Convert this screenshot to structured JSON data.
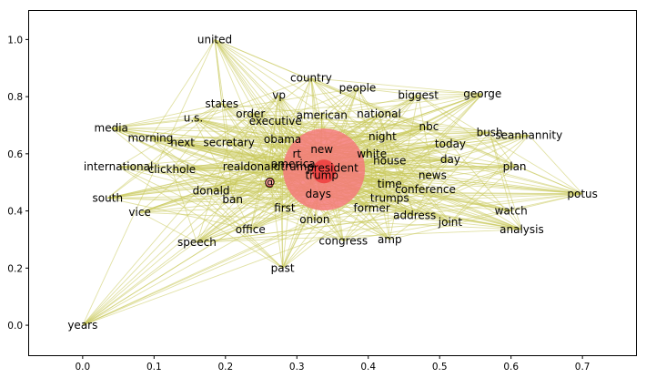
{
  "chart_data": {
    "type": "scatter",
    "subtype": "word-network",
    "title": "",
    "xlabel": "",
    "ylabel": "",
    "xlim": [
      -0.075,
      0.775
    ],
    "ylim": [
      -0.105,
      1.1
    ],
    "xticks": [
      0.0,
      0.1,
      0.2,
      0.3,
      0.4,
      0.5,
      0.6,
      0.7
    ],
    "xtick_labels": [
      "0.0",
      "0.1",
      "0.2",
      "0.3",
      "0.4",
      "0.5",
      "0.6",
      "0.7"
    ],
    "yticks": [
      0.0,
      0.2,
      0.4,
      0.6,
      0.8,
      1.0
    ],
    "ytick_labels": [
      "0.0",
      "0.2",
      "0.4",
      "0.6",
      "0.8",
      "1.0"
    ],
    "grid": false,
    "colors": {
      "edge": "#c8c85a",
      "big_node": "#f47a7a",
      "small_node": "#ee4040"
    },
    "nodes": [
      {
        "label": "united",
        "x": 0.185,
        "y": 1.0
      },
      {
        "label": "country",
        "x": 0.32,
        "y": 0.865
      },
      {
        "label": "people",
        "x": 0.385,
        "y": 0.83
      },
      {
        "label": "biggest",
        "x": 0.47,
        "y": 0.805
      },
      {
        "label": "george",
        "x": 0.56,
        "y": 0.81
      },
      {
        "label": "vp",
        "x": 0.275,
        "y": 0.805
      },
      {
        "label": "states",
        "x": 0.195,
        "y": 0.775
      },
      {
        "label": "order",
        "x": 0.235,
        "y": 0.74
      },
      {
        "label": "u.s.",
        "x": 0.155,
        "y": 0.725
      },
      {
        "label": "executive",
        "x": 0.27,
        "y": 0.715
      },
      {
        "label": "american",
        "x": 0.335,
        "y": 0.735
      },
      {
        "label": "national",
        "x": 0.415,
        "y": 0.74
      },
      {
        "label": "nbc",
        "x": 0.485,
        "y": 0.695
      },
      {
        "label": "media",
        "x": 0.04,
        "y": 0.69
      },
      {
        "label": "morning",
        "x": 0.095,
        "y": 0.655
      },
      {
        "label": "next",
        "x": 0.14,
        "y": 0.64
      },
      {
        "label": "secretary",
        "x": 0.205,
        "y": 0.64
      },
      {
        "label": "obama",
        "x": 0.28,
        "y": 0.65
      },
      {
        "label": "bush",
        "x": 0.57,
        "y": 0.675
      },
      {
        "label": "seanhannity",
        "x": 0.625,
        "y": 0.665
      },
      {
        "label": "night",
        "x": 0.42,
        "y": 0.66
      },
      {
        "label": "today",
        "x": 0.515,
        "y": 0.635
      },
      {
        "label": "new",
        "x": 0.335,
        "y": 0.615
      },
      {
        "label": "white",
        "x": 0.405,
        "y": 0.6
      },
      {
        "label": "rt",
        "x": 0.3,
        "y": 0.6
      },
      {
        "label": "house",
        "x": 0.43,
        "y": 0.575
      },
      {
        "label": "day",
        "x": 0.515,
        "y": 0.58
      },
      {
        "label": "america",
        "x": 0.295,
        "y": 0.565
      },
      {
        "label": "realdonaldtrump",
        "x": 0.26,
        "y": 0.555
      },
      {
        "label": "president",
        "x": 0.35,
        "y": 0.55
      },
      {
        "label": "international",
        "x": 0.05,
        "y": 0.555
      },
      {
        "label": "clickhole",
        "x": 0.125,
        "y": 0.545
      },
      {
        "label": "plan",
        "x": 0.605,
        "y": 0.555
      },
      {
        "label": "trump",
        "x": 0.335,
        "y": 0.525
      },
      {
        "label": "news",
        "x": 0.49,
        "y": 0.525
      },
      {
        "label": "time",
        "x": 0.43,
        "y": 0.495
      },
      {
        "label": "@",
        "x": 0.262,
        "y": 0.5
      },
      {
        "label": "conference",
        "x": 0.48,
        "y": 0.475
      },
      {
        "label": "donald",
        "x": 0.18,
        "y": 0.47
      },
      {
        "label": "days",
        "x": 0.33,
        "y": 0.46
      },
      {
        "label": "trumps",
        "x": 0.43,
        "y": 0.445
      },
      {
        "label": "potus",
        "x": 0.7,
        "y": 0.46
      },
      {
        "label": "south",
        "x": 0.035,
        "y": 0.445
      },
      {
        "label": "ban",
        "x": 0.21,
        "y": 0.44
      },
      {
        "label": "first",
        "x": 0.283,
        "y": 0.41
      },
      {
        "label": "former",
        "x": 0.405,
        "y": 0.41
      },
      {
        "label": "watch",
        "x": 0.6,
        "y": 0.4
      },
      {
        "label": "vice",
        "x": 0.08,
        "y": 0.395
      },
      {
        "label": "address",
        "x": 0.465,
        "y": 0.385
      },
      {
        "label": "onion",
        "x": 0.325,
        "y": 0.37
      },
      {
        "label": "joint",
        "x": 0.515,
        "y": 0.36
      },
      {
        "label": "analysis",
        "x": 0.615,
        "y": 0.335
      },
      {
        "label": "office",
        "x": 0.235,
        "y": 0.335
      },
      {
        "label": "congress",
        "x": 0.365,
        "y": 0.295
      },
      {
        "label": "amp",
        "x": 0.43,
        "y": 0.3
      },
      {
        "label": "speech",
        "x": 0.16,
        "y": 0.29
      },
      {
        "label": "past",
        "x": 0.28,
        "y": 0.2
      },
      {
        "label": "years",
        "x": 0.0,
        "y": 0.0
      }
    ],
    "markers": [
      {
        "x": 0.338,
        "y": 0.545,
        "size": "large",
        "color": "#f47a7a"
      },
      {
        "x": 0.338,
        "y": 0.538,
        "size": "small",
        "color": "#ee4040"
      },
      {
        "x": 0.262,
        "y": 0.5,
        "size": "tiny",
        "color": "#f4a0a0"
      }
    ],
    "edges_hub": [
      "trump",
      "president",
      "new",
      "days",
      "realdonaldtrump",
      "america"
    ]
  }
}
